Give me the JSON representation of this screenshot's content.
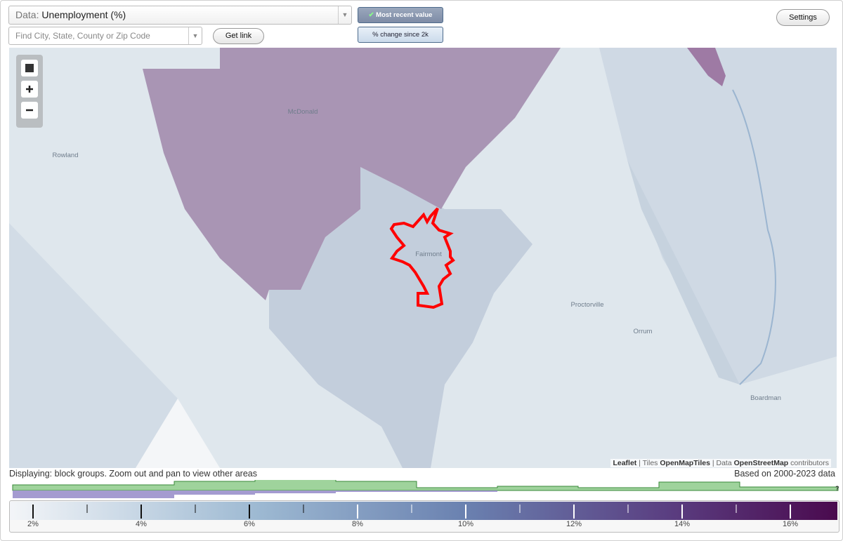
{
  "controls": {
    "data_label": "Data:",
    "data_value": "Unemployment (%)",
    "search_placeholder": "Find City, State, County or Zip Code",
    "get_link": "Get link",
    "most_recent": "Most recent value",
    "pct_change": "% change since 2k",
    "settings": "Settings"
  },
  "map": {
    "places": [
      "McDonald",
      "Rowland",
      "Fairmont",
      "Proctorville",
      "Orrum",
      "Boardman"
    ],
    "attribution": [
      "Leaflet",
      "Tiles",
      "OpenMapTiles",
      "Data",
      "OpenStreetMap",
      "contributors"
    ]
  },
  "status": {
    "displaying": "Displaying: block groups. Zoom out and pan to view other areas",
    "based_on": "Based on 2000-2023 data",
    "help": "?"
  },
  "legend": {
    "ticks": [
      "2%",
      "4%",
      "6%",
      "8%",
      "10%",
      "12%",
      "14%",
      "16%"
    ]
  }
}
